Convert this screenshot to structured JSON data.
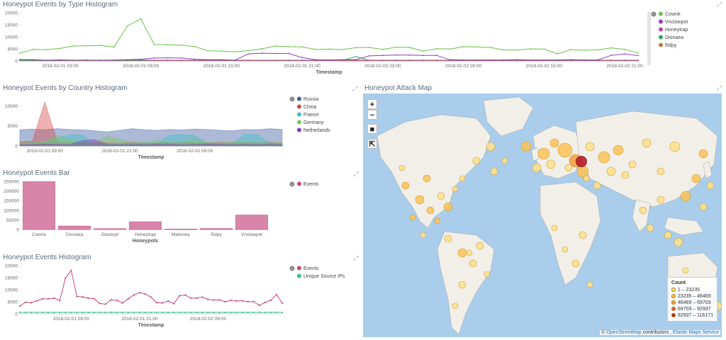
{
  "panels": {
    "type_hist": {
      "title": "Honeypot Events by Type Histogram",
      "xlabel": "Timestamp",
      "y_ticks": [
        "20000",
        "15000",
        "10000",
        "5000",
        "0"
      ],
      "x_ticks": [
        "2018-02-01 03:00",
        "2018-02-01 09:00",
        "2018-02-01 15:00",
        "2018-02-01 21:00",
        "2018-02-02 03:00",
        "2018-02-02 09:00",
        "2018-02-02 15:00",
        "2018-02-02 21:00"
      ],
      "legend": [
        {
          "name": "Cowrie",
          "color": "#6cc04a"
        },
        {
          "name": "Vnclowpot",
          "color": "#8f3fbf"
        },
        {
          "name": "Honeytrap",
          "color": "#c43fa8"
        },
        {
          "name": "Dionaea",
          "color": "#2fa86a"
        },
        {
          "name": "Rdpy",
          "color": "#b8802a"
        }
      ]
    },
    "country_hist": {
      "title": "Honeypot Events by Country Histogram",
      "xlabel": "Timestamp",
      "y_ticks": [
        "10000",
        "5000",
        "0"
      ],
      "x_ticks": [
        "2018-02-01 09:00",
        "2018-02-01 21:00",
        "2018-02-02 09:00"
      ],
      "legend": [
        {
          "name": "Russia",
          "color": "#3a5a9f"
        },
        {
          "name": "China",
          "color": "#d64545"
        },
        {
          "name": "France",
          "color": "#3cbfc4"
        },
        {
          "name": "Germany",
          "color": "#7fc45a"
        },
        {
          "name": "Netherlands",
          "color": "#7f3fbf"
        }
      ]
    },
    "events_bar": {
      "title": "Honeypot Events Bar",
      "xlabel": "Honeypots",
      "y_ticks": [
        "250000",
        "200000",
        "150000",
        "100000",
        "50000",
        "0"
      ],
      "legend": [
        {
          "name": "Events",
          "color": "#c2487e"
        }
      ]
    },
    "events_hist": {
      "title": "Honeypot Events Histogram",
      "xlabel": "Timestamp",
      "y_ticks": [
        "20000",
        "15000",
        "10000",
        "5000",
        "0"
      ],
      "x_ticks": [
        "2018-02-01 09:00",
        "2018-02-01 21:00",
        "2018-02-02 09:00"
      ],
      "legend": [
        {
          "name": "Events",
          "color": "#c2487e"
        },
        {
          "name": "Unique Source IPs",
          "color": "#3cbf8f"
        }
      ]
    },
    "attack_map": {
      "title": "Honeypot Attack Map",
      "controls": {
        "zoom_in": "+",
        "zoom_out": "−",
        "draw": "■",
        "fit": "⇱"
      },
      "legend_title": "Count",
      "legend": [
        {
          "label": "1 – 23235",
          "color": "#ffe08a"
        },
        {
          "label": "23235 – 46469",
          "color": "#fbc257"
        },
        {
          "label": "46469 – 69703",
          "color": "#f59a3c"
        },
        {
          "label": "69703 – 92937",
          "color": "#e0563a"
        },
        {
          "label": "92937 – 116171",
          "color": "#b81c2c"
        }
      ],
      "attribution_prefix": "© ",
      "attribution_osm": "OpenStreetMap",
      "attribution_mid": " contributors , ",
      "attribution_ems": "Elastic Maps Service"
    }
  },
  "chart_data": [
    {
      "type": "line",
      "title": "Honeypot Events by Type Histogram",
      "xlabel": "Timestamp",
      "ylabel": "",
      "ylim": [
        0,
        20000
      ],
      "x": [
        "2018-02-01 00:00",
        "2018-02-01 01:00",
        "2018-02-01 02:00",
        "2018-02-01 03:00",
        "2018-02-01 04:00",
        "2018-02-01 05:00",
        "2018-02-01 06:00",
        "2018-02-01 07:00",
        "2018-02-01 08:00",
        "2018-02-01 09:00",
        "2018-02-01 10:00",
        "2018-02-01 11:00",
        "2018-02-01 12:00",
        "2018-02-01 13:00",
        "2018-02-01 14:00",
        "2018-02-01 15:00",
        "2018-02-01 16:00",
        "2018-02-01 17:00",
        "2018-02-01 18:00",
        "2018-02-01 19:00",
        "2018-02-01 20:00",
        "2018-02-01 21:00",
        "2018-02-01 22:00",
        "2018-02-01 23:00",
        "2018-02-02 00:00",
        "2018-02-02 01:00",
        "2018-02-02 02:00",
        "2018-02-02 03:00",
        "2018-02-02 04:00",
        "2018-02-02 05:00",
        "2018-02-02 06:00",
        "2018-02-02 07:00",
        "2018-02-02 08:00",
        "2018-02-02 09:00",
        "2018-02-02 10:00",
        "2018-02-02 11:00",
        "2018-02-02 12:00",
        "2018-02-02 13:00",
        "2018-02-02 14:00",
        "2018-02-02 15:00",
        "2018-02-02 16:00",
        "2018-02-02 17:00",
        "2018-02-02 18:00",
        "2018-02-02 19:00",
        "2018-02-02 20:00",
        "2018-02-02 21:00",
        "2018-02-02 22:00"
      ],
      "series": [
        {
          "name": "Cowrie",
          "values": [
            3200,
            4800,
            4700,
            5200,
            6200,
            6300,
            6400,
            5800,
            14500,
            17500,
            6800,
            6700,
            6600,
            6000,
            4200,
            4100,
            3800,
            4300,
            5000,
            6200,
            5900,
            5800,
            4800,
            4900,
            4700,
            5500,
            5600,
            4800,
            5700,
            5600,
            4100,
            5100,
            4900,
            5900,
            5800,
            5600,
            4600,
            4500,
            5000,
            4900,
            2900,
            4700,
            4400,
            4600,
            5400,
            4800,
            3300
          ]
        },
        {
          "name": "Vnclowpot",
          "values": [
            600,
            500,
            300,
            400,
            300,
            350,
            300,
            350,
            500,
            700,
            1200,
            1300,
            1200,
            700,
            500,
            500,
            300,
            2900,
            3200,
            3100,
            3100,
            1400,
            500,
            400,
            500,
            500,
            2100,
            2300,
            2400,
            2400,
            2300,
            2300,
            500,
            400,
            400,
            400,
            400,
            500,
            400,
            400,
            400,
            500,
            400,
            400,
            2300,
            2900,
            2200
          ]
        },
        {
          "name": "Honeytrap",
          "values": [
            500,
            400,
            300,
            400,
            300,
            300,
            300,
            300,
            400,
            400,
            300,
            300,
            300,
            300,
            300,
            300,
            300,
            300,
            300,
            300,
            300,
            300,
            300,
            300,
            300,
            300,
            300,
            300,
            300,
            300,
            300,
            300,
            300,
            300,
            300,
            300,
            300,
            300,
            300,
            300,
            300,
            300,
            300,
            300,
            300,
            300,
            300
          ]
        },
        {
          "name": "Dionaea",
          "values": [
            200,
            200,
            200,
            200,
            200,
            200,
            200,
            200,
            200,
            200,
            200,
            200,
            200,
            200,
            200,
            200,
            200,
            200,
            200,
            200,
            200,
            200,
            200,
            200,
            200,
            1800,
            200,
            200,
            200,
            200,
            200,
            200,
            200,
            200,
            200,
            200,
            200,
            200,
            200,
            200,
            200,
            200,
            200,
            200,
            200,
            200,
            200
          ]
        },
        {
          "name": "Rdpy",
          "values": [
            100,
            100,
            100,
            100,
            100,
            100,
            100,
            100,
            100,
            100,
            100,
            100,
            100,
            100,
            100,
            100,
            100,
            100,
            100,
            100,
            100,
            100,
            100,
            100,
            100,
            100,
            100,
            100,
            100,
            100,
            100,
            100,
            100,
            100,
            100,
            100,
            100,
            100,
            100,
            100,
            100,
            100,
            100,
            100,
            100,
            100,
            100
          ]
        }
      ]
    },
    {
      "type": "area",
      "title": "Honeypot Events by Country Histogram",
      "xlabel": "Timestamp",
      "ylim": [
        0,
        12000
      ],
      "x": [
        "2018-02-01 04:00",
        "2018-02-01 06:00",
        "2018-02-01 08:00",
        "2018-02-01 10:00",
        "2018-02-01 12:00",
        "2018-02-01 14:00",
        "2018-02-01 16:00",
        "2018-02-01 18:00",
        "2018-02-01 20:00",
        "2018-02-01 22:00",
        "2018-02-02 00:00",
        "2018-02-02 02:00",
        "2018-02-02 04:00",
        "2018-02-02 06:00",
        "2018-02-02 08:00",
        "2018-02-02 10:00",
        "2018-02-02 12:00",
        "2018-02-02 14:00",
        "2018-02-02 16:00",
        "2018-02-02 18:00",
        "2018-02-02 20:00",
        "2018-02-02 22:00"
      ],
      "series": [
        {
          "name": "Russia",
          "values": [
            4000,
            4200,
            4000,
            4300,
            4100,
            4000,
            3800,
            3500,
            3900,
            4300,
            4000,
            3900,
            4100,
            4000,
            4200,
            4100,
            3900,
            3800,
            4100,
            4000,
            4300,
            4100
          ]
        },
        {
          "name": "China",
          "values": [
            1000,
            1200,
            11000,
            1000,
            800,
            700,
            900,
            800,
            700,
            900,
            800,
            700,
            800,
            900,
            700,
            800,
            900,
            700,
            800,
            800,
            900,
            800
          ]
        },
        {
          "name": "France",
          "values": [
            500,
            700,
            900,
            2000,
            2800,
            2700,
            600,
            500,
            700,
            600,
            800,
            700,
            2700,
            2800,
            2600,
            700,
            600,
            500,
            2900,
            2800,
            800,
            600
          ]
        },
        {
          "name": "Germany",
          "values": [
            800,
            900,
            1000,
            2600,
            1400,
            1000,
            800,
            2400,
            1600,
            900,
            800,
            1400,
            900,
            800,
            1800,
            900,
            800,
            1000,
            900,
            800,
            700,
            900
          ]
        },
        {
          "name": "Netherlands",
          "values": [
            300,
            400,
            500,
            400,
            300,
            1300,
            1600,
            400,
            300,
            400,
            300,
            500,
            400,
            300,
            400,
            500,
            400,
            300,
            400,
            300,
            400,
            300
          ]
        }
      ]
    },
    {
      "type": "bar",
      "title": "Honeypot Events Bar",
      "xlabel": "Honeypots",
      "ylim": [
        0,
        250000
      ],
      "categories": [
        "Cowrie",
        "Dionaea",
        "Glastopf",
        "Honeytrap",
        "Mailoney",
        "Rdpy",
        "Vnclowpot"
      ],
      "series": [
        {
          "name": "Events",
          "values": [
            248000,
            18000,
            4500,
            40000,
            2500,
            5000,
            75000
          ]
        }
      ]
    },
    {
      "type": "line",
      "title": "Honeypot Events Histogram",
      "xlabel": "Timestamp",
      "ylim": [
        0,
        20000
      ],
      "x": [
        "2018-02-01 00:00",
        "2018-02-01 01:00",
        "2018-02-01 02:00",
        "2018-02-01 03:00",
        "2018-02-01 04:00",
        "2018-02-01 05:00",
        "2018-02-01 06:00",
        "2018-02-01 07:00",
        "2018-02-01 08:00",
        "2018-02-01 09:00",
        "2018-02-01 10:00",
        "2018-02-01 11:00",
        "2018-02-01 12:00",
        "2018-02-01 13:00",
        "2018-02-01 14:00",
        "2018-02-01 15:00",
        "2018-02-01 16:00",
        "2018-02-01 17:00",
        "2018-02-01 18:00",
        "2018-02-01 19:00",
        "2018-02-01 20:00",
        "2018-02-01 21:00",
        "2018-02-01 22:00",
        "2018-02-01 23:00",
        "2018-02-02 00:00",
        "2018-02-02 01:00",
        "2018-02-02 02:00",
        "2018-02-02 03:00",
        "2018-02-02 04:00",
        "2018-02-02 05:00",
        "2018-02-02 06:00",
        "2018-02-02 07:00",
        "2018-02-02 08:00",
        "2018-02-02 09:00",
        "2018-02-02 10:00",
        "2018-02-02 11:00",
        "2018-02-02 12:00",
        "2018-02-02 13:00",
        "2018-02-02 14:00",
        "2018-02-02 15:00",
        "2018-02-02 16:00",
        "2018-02-02 17:00",
        "2018-02-02 18:00",
        "2018-02-02 19:00",
        "2018-02-02 20:00",
        "2018-02-02 21:00",
        "2018-02-02 22:00"
      ],
      "series": [
        {
          "name": "Events",
          "values": [
            3200,
            4800,
            4600,
            5400,
            6200,
            6200,
            6500,
            5500,
            14800,
            18000,
            7200,
            7000,
            6500,
            6300,
            4300,
            4000,
            5800,
            5600,
            4500,
            6200,
            7800,
            8800,
            8200,
            6900,
            4600,
            4500,
            5300,
            4200,
            7500,
            7800,
            6500,
            6500,
            6900,
            6000,
            5700,
            5800,
            5000,
            5600,
            5300,
            5400,
            5000,
            5100,
            3500,
            4700,
            5600,
            8000,
            4400
          ]
        },
        {
          "name": "Unique Source IPs",
          "values": [
            600,
            600,
            600,
            600,
            600,
            600,
            600,
            600,
            600,
            600,
            600,
            600,
            600,
            600,
            600,
            600,
            600,
            600,
            600,
            600,
            600,
            600,
            600,
            600,
            600,
            600,
            600,
            600,
            600,
            600,
            600,
            600,
            600,
            600,
            600,
            600,
            600,
            600,
            600,
            600,
            600,
            600,
            600,
            600,
            600,
            600,
            600
          ]
        }
      ]
    }
  ]
}
